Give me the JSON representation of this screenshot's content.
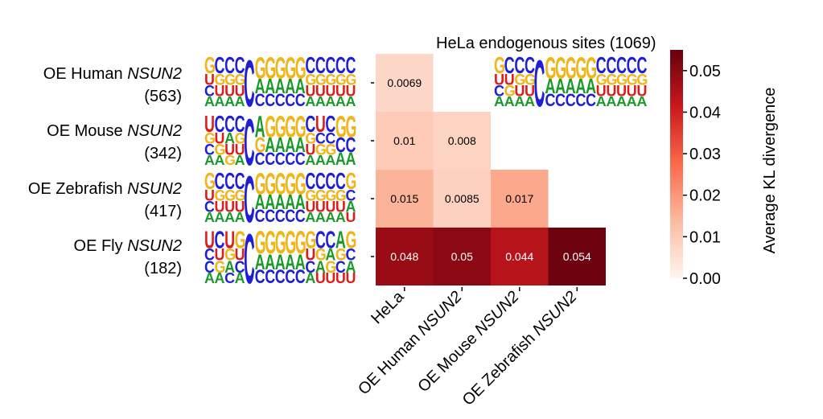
{
  "chart_data": {
    "type": "heatmap",
    "title": "HeLa endogenous sites (1069)",
    "rows": [
      {
        "name": "OE Human",
        "gene": "NSUN2",
        "count": "(563)"
      },
      {
        "name": "OE Mouse",
        "gene": "NSUN2",
        "count": "(342)"
      },
      {
        "name": "OE Zebrafish",
        "gene": "NSUN2",
        "count": "(417)"
      },
      {
        "name": "OE Fly",
        "gene": "NSUN2",
        "count": "(182)"
      }
    ],
    "columns": [
      {
        "name": "HeLa",
        "gene": ""
      },
      {
        "name": "OE Human",
        "gene": "NSUN2"
      },
      {
        "name": "OE Mouse",
        "gene": "NSUN2"
      },
      {
        "name": "OE Zebrafish",
        "gene": "NSUN2"
      }
    ],
    "values": [
      [
        0.0069,
        null,
        null,
        null
      ],
      [
        0.01,
        0.008,
        null,
        null
      ],
      [
        0.015,
        0.0085,
        0.017,
        null
      ],
      [
        0.048,
        0.05,
        0.044,
        0.054
      ]
    ],
    "value_labels": [
      [
        "0.0069",
        "",
        "",
        ""
      ],
      [
        "0.01",
        "0.008",
        "",
        ""
      ],
      [
        "0.015",
        "0.0085",
        "0.017",
        ""
      ],
      [
        "0.048",
        "0.05",
        "0.044",
        "0.054"
      ]
    ],
    "colorbar": {
      "label": "Average KL divergence",
      "vmin": 0.0,
      "vmax": 0.055,
      "ticks": [
        0.0,
        0.01,
        0.02,
        0.03,
        0.04,
        0.05
      ],
      "tick_labels": [
        "0.00",
        "0.01",
        "0.02",
        "0.03",
        "0.04",
        "0.05"
      ],
      "colors": [
        "#fff5f0",
        "#fcbba1",
        "#fb6a4a",
        "#cb181d",
        "#67000d"
      ]
    },
    "sequence_logos": [
      {
        "row": "OE Human",
        "columns": [
          "GUCA",
          "CGUA",
          "CGUA",
          "CGUA",
          "CC",
          "GAC",
          "GAC",
          "GAC",
          "GAC",
          "GAC",
          "CGUA",
          "CGUA",
          "CGUA",
          "CGUA",
          "CGUA"
        ]
      },
      {
        "row": "OE Mouse",
        "columns": [
          "UGCA",
          "CUGA",
          "CAUG",
          "CGUA",
          "CC",
          "AGC",
          "GAC",
          "GAC",
          "GAC",
          "GAC",
          "CGUA",
          "UCGA",
          "CCGA",
          "GCA",
          "GCA"
        ]
      },
      {
        "row": "OE Zebrafish",
        "columns": [
          "GUCA",
          "CGUA",
          "CGUA",
          "CGUA",
          "CC",
          "GAC",
          "GAC",
          "GAC",
          "GAC",
          "GAC",
          "CGUA",
          "CGUA",
          "CGUA",
          "CGUA",
          "GCAU"
        ]
      },
      {
        "row": "OE Fly",
        "columns": [
          "UCCA",
          "CUGA",
          "UGAC",
          "GUCA",
          "CC",
          "GAC",
          "GAC",
          "GAC",
          "GAC",
          "GAC",
          "GUCA",
          "CGAU",
          "CAGU",
          "AGCU",
          "GCAU"
        ]
      },
      {
        "row": "HeLa endogenous sites (1069)",
        "columns": [
          "GUCA",
          "CUGA",
          "CGUA",
          "CGUA",
          "CC",
          "GAC",
          "GAC",
          "GAC",
          "GAC",
          "GAC",
          "CGUA",
          "CGUA",
          "CGUA",
          "CGUA",
          "CGUA"
        ]
      }
    ],
    "base_colors": {
      "A": "#1a9a2a",
      "C": "#1f1fd6",
      "G": "#f2b518",
      "U": "#e01b1b"
    }
  }
}
